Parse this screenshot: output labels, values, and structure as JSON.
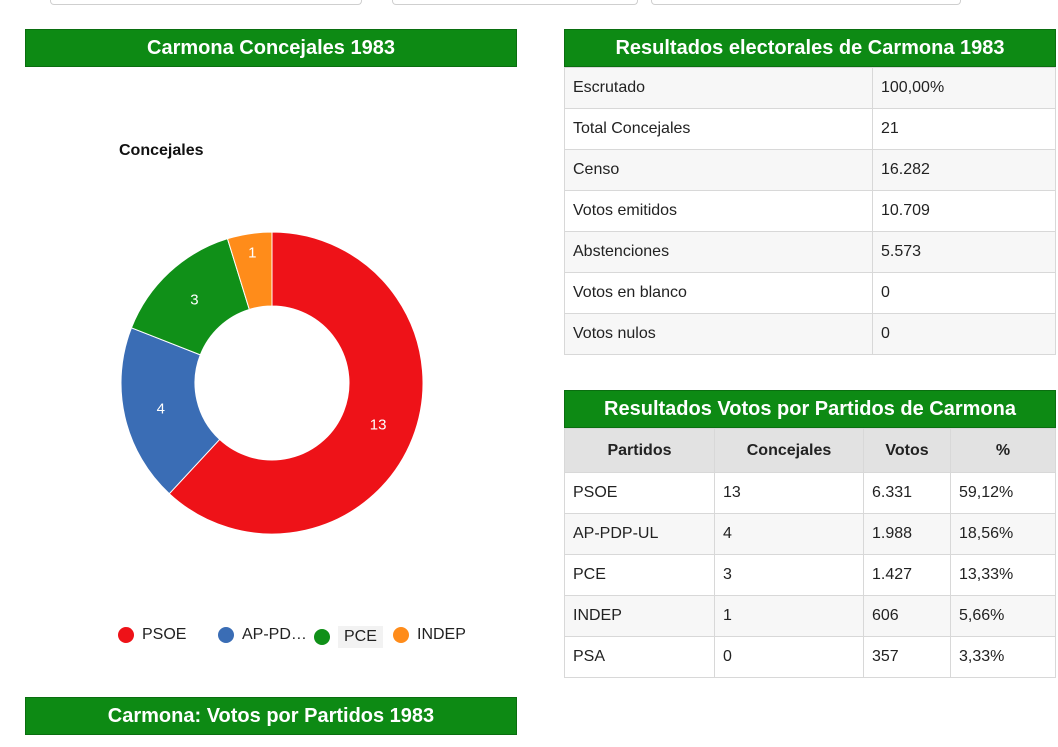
{
  "panels": {
    "concejales_title": "Carmona Concejales 1983",
    "resultados_title": "Resultados electorales de Carmona 1983",
    "votos_partidos_title": "Resultados Votos por Partidos de Carmona",
    "votos_chart_title": "Carmona: Votos por Partidos 1983"
  },
  "chart_data": {
    "type": "pie",
    "title": "Concejales",
    "labels": [
      "PSOE",
      "AP-PD…",
      "PCE",
      "INDEP"
    ],
    "values": [
      13,
      4,
      3,
      1
    ],
    "value_labels": [
      "13",
      "4",
      "3",
      "1"
    ],
    "colors": [
      "#ee1218",
      "#3a6db5",
      "#109018",
      "#ff8c1a"
    ],
    "donut": true,
    "legend_position": "bottom"
  },
  "resultados": [
    {
      "label": "Escrutado",
      "value": "100,00%"
    },
    {
      "label": "Total Concejales",
      "value": "21"
    },
    {
      "label": "Censo",
      "value": "16.282"
    },
    {
      "label": "Votos emitidos",
      "value": "10.709"
    },
    {
      "label": "Abstenciones",
      "value": "5.573"
    },
    {
      "label": "Votos en blanco",
      "value": "0"
    },
    {
      "label": "Votos nulos",
      "value": "0"
    }
  ],
  "votos_table": {
    "headers": [
      "Partidos",
      "Concejales",
      "Votos",
      "%"
    ],
    "rows": [
      [
        "PSOE",
        "13",
        "6.331",
        "59,12%"
      ],
      [
        "AP-PDP-UL",
        "4",
        "1.988",
        "18,56%"
      ],
      [
        "PCE",
        "3",
        "1.427",
        "13,33%"
      ],
      [
        "INDEP",
        "1",
        "606",
        "5,66%"
      ],
      [
        "PSA",
        "0",
        "357",
        "3,33%"
      ]
    ]
  }
}
